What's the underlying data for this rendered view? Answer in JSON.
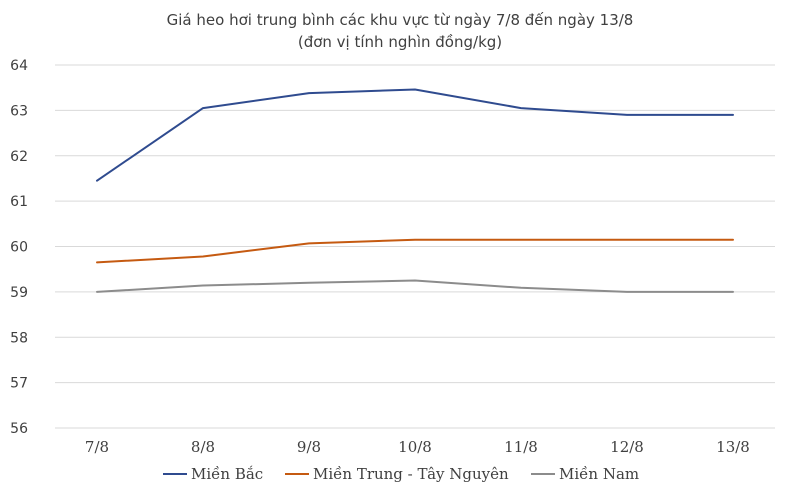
{
  "chart_data": {
    "type": "line",
    "title": "Giá heo hơi trung bình các khu vực từ ngày 7/8 đến ngày 13/8",
    "subtitle": "(đơn vị tính nghìn đồng/kg)",
    "categories": [
      "7/8",
      "8/8",
      "9/8",
      "10/8",
      "11/8",
      "12/8",
      "13/8"
    ],
    "ylim": [
      56,
      64
    ],
    "yticks": [
      "56",
      "57",
      "58",
      "59",
      "60",
      "61",
      "62",
      "63",
      "64"
    ],
    "grid": true,
    "legend_position": "bottom",
    "series": [
      {
        "name": "Miền Bắc",
        "color": "#2f4b8f",
        "values": [
          61.45,
          63.05,
          63.38,
          63.46,
          63.05,
          62.9,
          62.9
        ]
      },
      {
        "name": "Miền Trung - Tây Nguyên",
        "color": "#c55a11",
        "values": [
          59.65,
          59.78,
          60.07,
          60.15,
          60.15,
          60.15,
          60.15
        ]
      },
      {
        "name": "Miền Nam",
        "color": "#8c8c8c",
        "values": [
          59.0,
          59.14,
          59.2,
          59.25,
          59.09,
          59.0,
          59.0
        ]
      }
    ]
  }
}
